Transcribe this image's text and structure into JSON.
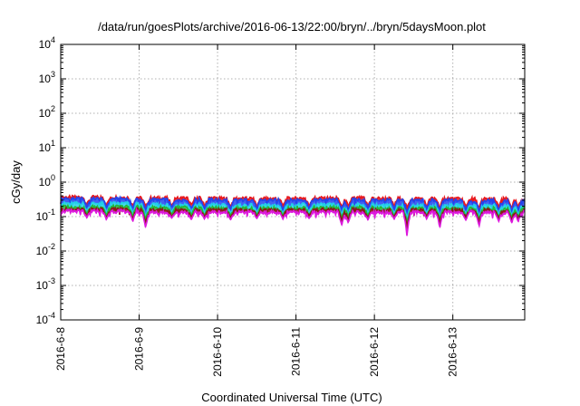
{
  "chart_data": {
    "type": "area",
    "title": "/data/run/goesPlots/archive/2016-06-13/22:00/bryn/../bryn/5daysMoon.plot",
    "xlabel": "Coordinated Universal Time (UTC)",
    "ylabel": "cGy/day",
    "yscale": "log",
    "ylim": [
      0.0001,
      10000
    ],
    "y_ticks": [
      {
        "base": "10",
        "exp": "-4"
      },
      {
        "base": "10",
        "exp": "-3"
      },
      {
        "base": "10",
        "exp": "-2"
      },
      {
        "base": "10",
        "exp": "-1"
      },
      {
        "base": "10",
        "exp": "0"
      },
      {
        "base": "10",
        "exp": "1"
      },
      {
        "base": "10",
        "exp": "2"
      },
      {
        "base": "10",
        "exp": "3"
      },
      {
        "base": "10",
        "exp": "4"
      }
    ],
    "xlim": [
      "2016-6-8",
      "2016-6-13 22:00"
    ],
    "x_ticks": [
      "2016-6-8",
      "2016-6-9",
      "2016-6-10",
      "2016-6-11",
      "2016-6-12",
      "2016-6-13"
    ],
    "grid": true,
    "series": [
      {
        "color": "#e8171c",
        "base_value": 0.33,
        "values": [
          0.38,
          0.36,
          0.35,
          0.36,
          0.35,
          0.34,
          0.38
        ]
      },
      {
        "color": "#2244ee",
        "base_value": 0.3,
        "values": [
          0.34,
          0.32,
          0.31,
          0.32,
          0.31,
          0.3,
          0.36
        ]
      },
      {
        "color": "#22d0e8",
        "base_value": 0.22,
        "values": [
          0.25,
          0.23,
          0.22,
          0.23,
          0.22,
          0.22,
          0.26
        ]
      },
      {
        "color": "#22b838",
        "base_value": 0.185,
        "values": [
          0.2,
          0.19,
          0.18,
          0.19,
          0.18,
          0.18,
          0.21
        ]
      },
      {
        "color": "#8a1818",
        "base_value": 0.165,
        "values": [
          0.17,
          0.16,
          0.16,
          0.165,
          0.16,
          0.16,
          0.18
        ]
      },
      {
        "color": "#dd18dd",
        "base_value": 0.14,
        "values": [
          0.15,
          0.14,
          0.14,
          0.14,
          0.14,
          0.14,
          0.15
        ]
      }
    ],
    "magenta_dips": [
      {
        "date": "2016-06-08 08:00",
        "value": 0.09
      },
      {
        "date": "2016-06-08 14:00",
        "value": 0.08
      },
      {
        "date": "2016-06-08 22:00",
        "value": 0.07
      },
      {
        "date": "2016-06-09 02:00",
        "value": 0.045
      },
      {
        "date": "2016-06-09 10:00",
        "value": 0.09
      },
      {
        "date": "2016-06-09 16:00",
        "value": 0.08
      },
      {
        "date": "2016-06-09 20:00",
        "value": 0.085
      },
      {
        "date": "2016-06-10 04:00",
        "value": 0.08
      },
      {
        "date": "2016-06-10 12:00",
        "value": 0.09
      },
      {
        "date": "2016-06-10 20:00",
        "value": 0.085
      },
      {
        "date": "2016-06-11 04:00",
        "value": 0.09
      },
      {
        "date": "2016-06-11 14:00",
        "value": 0.055
      },
      {
        "date": "2016-06-11 16:00",
        "value": 0.065
      },
      {
        "date": "2016-06-11 22:00",
        "value": 0.08
      },
      {
        "date": "2016-06-12 06:00",
        "value": 0.085
      },
      {
        "date": "2016-06-12 10:00",
        "value": 0.023
      },
      {
        "date": "2016-06-12 16:00",
        "value": 0.085
      },
      {
        "date": "2016-06-12 20:00",
        "value": 0.045
      },
      {
        "date": "2016-06-13 04:00",
        "value": 0.08
      },
      {
        "date": "2016-06-13 08:00",
        "value": 0.05
      },
      {
        "date": "2016-06-13 14:00",
        "value": 0.07
      },
      {
        "date": "2016-06-13 18:00",
        "value": 0.065
      },
      {
        "date": "2016-06-13 20:00",
        "value": 0.07
      }
    ]
  }
}
